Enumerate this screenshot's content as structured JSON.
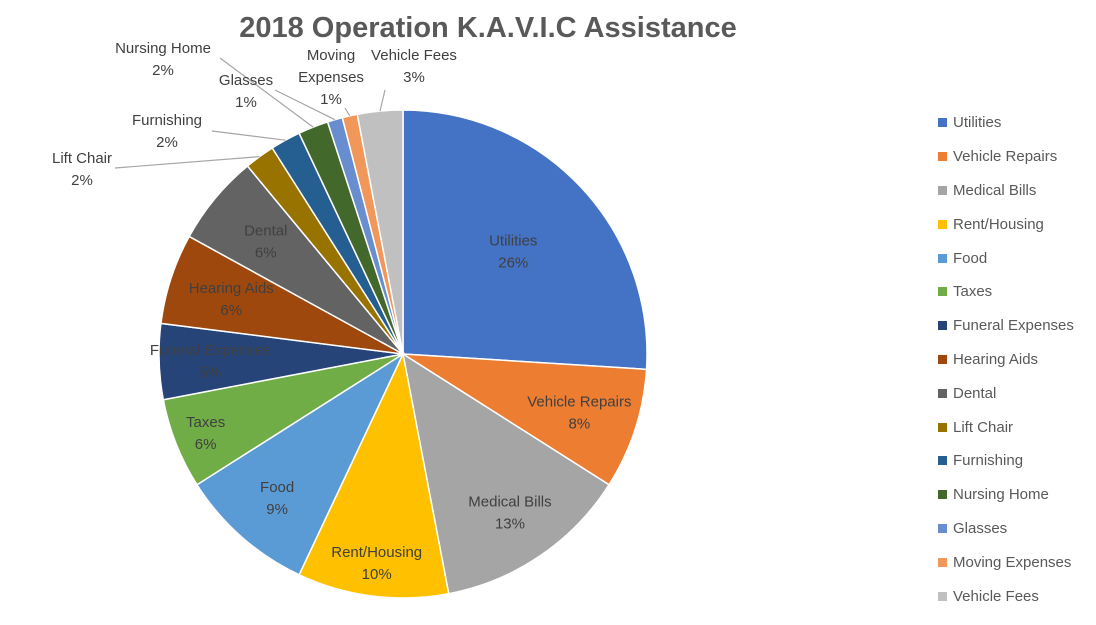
{
  "chart_data": {
    "type": "pie",
    "title": "2018 Operation K.A.V.I.C Assistance",
    "legend_position": "right",
    "slices": [
      {
        "label": "Utilities",
        "value": 26,
        "display": "26%",
        "color": "#4472c4",
        "label_placement": "inside"
      },
      {
        "label": "Vehicle Repairs",
        "value": 8,
        "display": "8%",
        "color": "#ed7d31",
        "label_placement": "inside"
      },
      {
        "label": "Medical Bills",
        "value": 13,
        "display": "13%",
        "color": "#a5a5a5",
        "label_placement": "inside"
      },
      {
        "label": "Rent/Housing",
        "value": 10,
        "display": "10%",
        "color": "#ffc000",
        "label_placement": "inside"
      },
      {
        "label": "Food",
        "value": 9,
        "display": "9%",
        "color": "#5b9bd5",
        "label_placement": "inside"
      },
      {
        "label": "Taxes",
        "value": 6,
        "display": "6%",
        "color": "#70ad47",
        "label_placement": "inside"
      },
      {
        "label": "Funeral Expenses",
        "value": 5,
        "display": "5%",
        "color": "#264478",
        "label_placement": "inside"
      },
      {
        "label": "Hearing Aids",
        "value": 6,
        "display": "6%",
        "color": "#9e480e",
        "label_placement": "inside"
      },
      {
        "label": "Dental",
        "value": 6,
        "display": "6%",
        "color": "#636363",
        "label_placement": "inside"
      },
      {
        "label": "Lift Chair",
        "value": 2,
        "display": "2%",
        "color": "#997300",
        "label_placement": "outside"
      },
      {
        "label": "Furnishing",
        "value": 2,
        "display": "2%",
        "color": "#255e91",
        "label_placement": "outside"
      },
      {
        "label": "Nursing Home",
        "value": 2,
        "display": "2%",
        "color": "#43682b",
        "label_placement": "outside"
      },
      {
        "label": "Glasses",
        "value": 1,
        "display": "1%",
        "color": "#698ed0",
        "label_placement": "outside"
      },
      {
        "label": "Moving Expenses",
        "value": 1,
        "display": "1%",
        "color": "#f1975a",
        "label_placement": "outside"
      },
      {
        "label": "Vehicle Fees",
        "value": 3,
        "display": "3%",
        "color": "#c0c0c0",
        "label_placement": "outside"
      }
    ]
  }
}
